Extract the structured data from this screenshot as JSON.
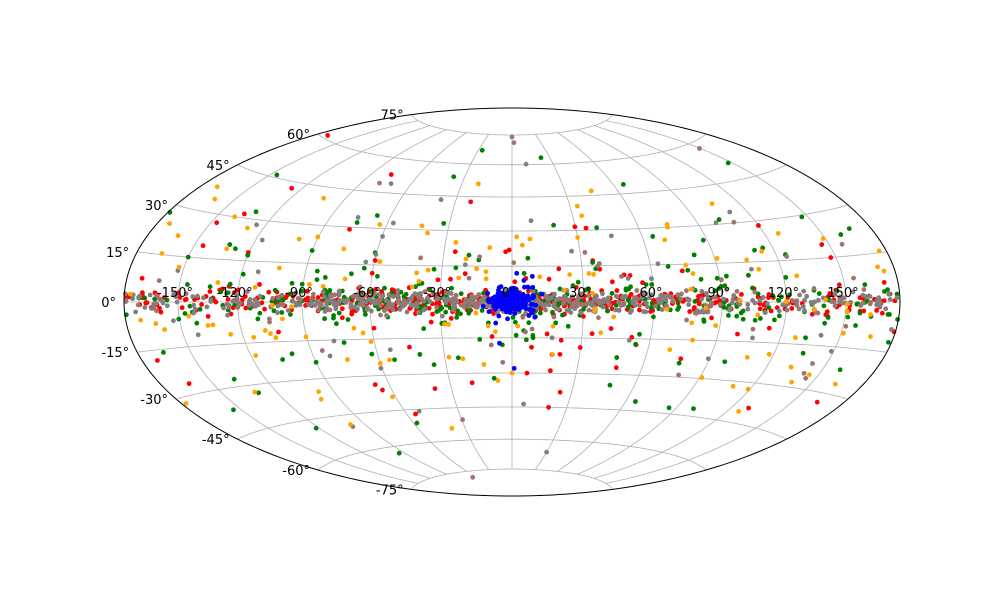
{
  "chart_data": {
    "type": "scatter",
    "projection": "hammer",
    "title": "",
    "xlabel": "",
    "ylabel": "",
    "xlim": [
      -180,
      180
    ],
    "ylim": [
      -90,
      90
    ],
    "grid": true,
    "legend": "none",
    "x_ticks": [
      -150,
      -120,
      -90,
      -60,
      -30,
      0,
      30,
      60,
      90,
      120,
      150
    ],
    "x_tick_labels": [
      "-150°",
      "-120°",
      "-90°",
      "-60°",
      "-30°",
      "0°",
      "30°",
      "60°",
      "90°",
      "120°",
      "150°"
    ],
    "y_ticks": [
      -75,
      -60,
      -45,
      -30,
      -15,
      0,
      15,
      30,
      45,
      60,
      75
    ],
    "y_tick_labels": [
      "-75°",
      "-60°",
      "-45°",
      "-30°",
      "-15°",
      "0°",
      "15°",
      "30°",
      "45°",
      "60°",
      "75°"
    ],
    "series": [
      {
        "color": "#ff0000",
        "count": 520,
        "distribution": "disk",
        "lat_scale_deg": 2.5,
        "outlier_fraction": 0.12,
        "samples": [
          [
            -150,
            3
          ],
          [
            -135,
            -5
          ],
          [
            -100,
            2
          ],
          [
            -70,
            1
          ],
          [
            -50,
            -2
          ],
          [
            -20,
            1
          ],
          [
            15,
            -1
          ],
          [
            45,
            0
          ],
          [
            80,
            2
          ],
          [
            110,
            -3
          ],
          [
            145,
            4
          ],
          [
            172,
            6
          ],
          [
            -25,
            21
          ],
          [
            -55,
            -47
          ],
          [
            -160,
            -2
          ],
          [
            20,
            -45
          ]
        ]
      },
      {
        "color": "#008000",
        "count": 380,
        "distribution": "disk",
        "lat_scale_deg": 4,
        "outlier_fraction": 0.2,
        "samples": [
          [
            -150,
            15
          ],
          [
            -120,
            17
          ],
          [
            -90,
            20
          ],
          [
            -70,
            -7
          ],
          [
            -30,
            -3
          ],
          [
            5,
            -12
          ],
          [
            30,
            -3
          ],
          [
            60,
            -6
          ],
          [
            90,
            6
          ],
          [
            115,
            20
          ],
          [
            160,
            22
          ],
          [
            40,
            31
          ],
          [
            66,
            49
          ],
          [
            -75,
            32
          ],
          [
            -165,
            -16
          ],
          [
            -130,
            -33
          ],
          [
            -58,
            -51
          ]
        ]
      },
      {
        "color": "#808080",
        "count": 420,
        "distribution": "disk",
        "lat_scale_deg": 2,
        "outlier_fraction": 0.08,
        "samples": [
          [
            -175,
            1
          ],
          [
            -140,
            2
          ],
          [
            -110,
            -1
          ],
          [
            -80,
            2
          ],
          [
            -40,
            3
          ],
          [
            -5,
            1
          ],
          [
            10,
            2
          ],
          [
            35,
            1
          ],
          [
            65,
            1
          ],
          [
            95,
            1
          ],
          [
            130,
            2
          ],
          [
            168,
            1
          ],
          [
            -72,
            49
          ],
          [
            0,
            74
          ],
          [
            30,
            -66
          ]
        ]
      },
      {
        "color": "#a0736e",
        "count": 180,
        "distribution": "disk",
        "lat_scale_deg": 3,
        "outlier_fraction": 0.1,
        "samples": [
          [
            -160,
            1
          ],
          [
            -120,
            -2
          ],
          [
            -85,
            3
          ],
          [
            -45,
            -1
          ],
          [
            -15,
            2
          ],
          [
            25,
            -2
          ],
          [
            55,
            3
          ],
          [
            85,
            -1
          ],
          [
            125,
            0
          ],
          [
            160,
            4
          ],
          [
            -9,
            -18
          ],
          [
            37,
            15
          ],
          [
            2,
            71
          ]
        ]
      },
      {
        "color": "#ffa500",
        "count": 140,
        "distribution": "scattered",
        "lat_scale_deg": 14,
        "outlier_fraction": 0.35,
        "samples": [
          [
            -140,
            30
          ],
          [
            -60,
            -25
          ],
          [
            -20,
            18
          ],
          [
            0,
            -30
          ],
          [
            18,
            -22
          ],
          [
            30,
            27
          ],
          [
            45,
            47
          ],
          [
            70,
            25
          ],
          [
            110,
            -32
          ],
          [
            145,
            -25
          ],
          [
            -115,
            -13
          ],
          [
            -100,
            -38
          ],
          [
            22,
            5
          ],
          [
            -10,
            -10
          ]
        ]
      },
      {
        "color": "#0000ff",
        "count": 220,
        "distribution": "bulge",
        "lat_scale_deg": 2.5,
        "lon_scale_deg": 4.5,
        "outlier_fraction": 0.02,
        "samples": [
          [
            0,
            0
          ],
          [
            -4,
            2
          ],
          [
            3,
            -2
          ],
          [
            6,
            1
          ],
          [
            -7,
            -3
          ],
          [
            2,
            4
          ],
          [
            -1,
            -4
          ],
          [
            8,
            -1
          ],
          [
            -9,
            1
          ],
          [
            2,
            12
          ],
          [
            5,
            9
          ],
          [
            1,
            -28
          ]
        ]
      }
    ]
  }
}
